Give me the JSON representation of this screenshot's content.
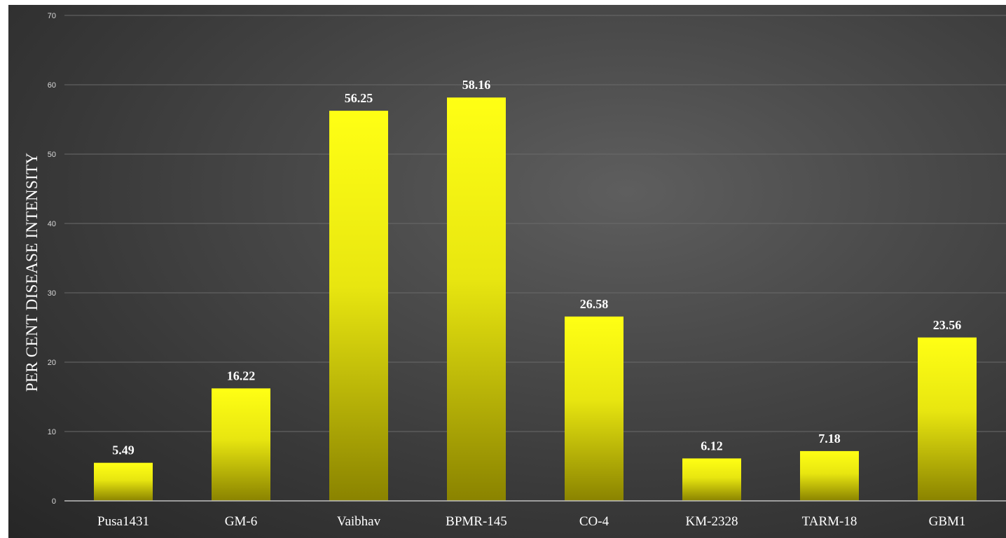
{
  "chart_data": {
    "type": "bar",
    "title": "",
    "xlabel": "",
    "ylabel": "PER CENT DISEASE INTENSITY",
    "categories": [
      "Pusa1431",
      "GM-6",
      "Vaibhav",
      "BPMR-145",
      "CO-4",
      "KM-2328",
      "TARM-18",
      "GBM1"
    ],
    "values": [
      5.49,
      16.22,
      56.25,
      58.16,
      26.58,
      6.12,
      7.18,
      23.56
    ],
    "value_labels": [
      "5.49",
      "16.22",
      "56.25",
      "58.16",
      "26.58",
      "6.12",
      "7.18",
      "23.56"
    ],
    "ylim": [
      0,
      70
    ],
    "yticks": [
      0,
      10,
      20,
      30,
      40,
      50,
      60,
      70
    ],
    "grid": true,
    "legend": "none",
    "colors": {
      "bar_top": "#ffff14",
      "bar_mid": "#e8e610",
      "bar_bottom": "#8a8300",
      "background": "#3d3d3d",
      "grid": "#6a6a6a",
      "text": "#ffffff"
    }
  }
}
